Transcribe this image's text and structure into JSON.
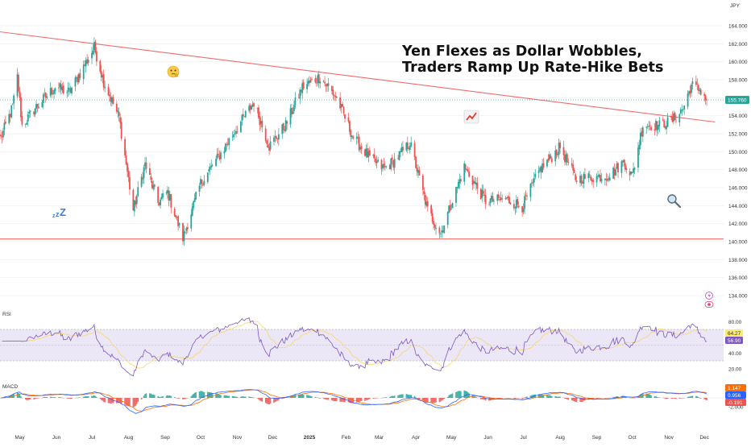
{
  "headline": {
    "line1": "Yen Flexes as Dollar Wobbles,",
    "line2": "Traders Ramp Up Rate-Hike Bets"
  },
  "currency_label": "JPY",
  "colors": {
    "up": "#26a69a",
    "down": "#ef5350",
    "trendline": "#f06c6c",
    "rsi_line": "#7e57c2",
    "rsi_signal": "#f5d76e",
    "macd_line": "#2962ff",
    "macd_signal": "#ff6d00",
    "price_badge": "#26a69a",
    "rsi_badge_1": "#fbe97a",
    "rsi_badge_2": "#7e57c2",
    "macd_badge_signal": "#ff6d00",
    "macd_badge_line": "#2962ff",
    "macd_badge_hist": "#ef5350"
  },
  "icons": [
    "thinking-face-icon",
    "chart-increasing-icon",
    "sleeping-zzz-icon",
    "magnifying-glass-icon",
    "lightning-icon",
    "eye-icon"
  ],
  "chart_data": [
    {
      "type": "candlestick",
      "name": "price",
      "ylim": [
        134,
        166
      ],
      "y_ticks": [
        "164.000",
        "162.000",
        "160.000",
        "158.000",
        "156.000",
        "154.000",
        "152.000",
        "150.000",
        "148.000",
        "146.000",
        "144.000",
        "142.000",
        "140.000",
        "138.000",
        "136.000",
        "134.000"
      ],
      "x_ticks": [
        "May",
        "Jun",
        "Jul",
        "Aug",
        "Sep",
        "Oct",
        "Nov",
        "Dec",
        "2025",
        "Feb",
        "Mar",
        "Apr",
        "May",
        "Jun",
        "Jul",
        "Aug",
        "Sep",
        "Oct",
        "Nov",
        "Dec"
      ],
      "last_price": "155.760",
      "close_path": [
        {
          "x": "2024-04-15",
          "y": 151.5
        },
        {
          "x": "2024-04-25",
          "y": 155.0
        },
        {
          "x": "2024-04-29",
          "y": 158.3
        },
        {
          "x": "2024-05-03",
          "y": 152.9
        },
        {
          "x": "2024-05-15",
          "y": 155.0
        },
        {
          "x": "2024-05-31",
          "y": 157.2
        },
        {
          "x": "2024-06-12",
          "y": 156.6
        },
        {
          "x": "2024-06-26",
          "y": 159.9
        },
        {
          "x": "2024-07-03",
          "y": 161.6
        },
        {
          "x": "2024-07-11",
          "y": 157.8
        },
        {
          "x": "2024-07-24",
          "y": 153.8
        },
        {
          "x": "2024-08-05",
          "y": 143.5
        },
        {
          "x": "2024-08-15",
          "y": 148.6
        },
        {
          "x": "2024-08-26",
          "y": 144.3
        },
        {
          "x": "2024-09-03",
          "y": 145.5
        },
        {
          "x": "2024-09-16",
          "y": 140.4
        },
        {
          "x": "2024-10-01",
          "y": 146.5
        },
        {
          "x": "2024-10-15",
          "y": 149.2
        },
        {
          "x": "2024-10-31",
          "y": 152.5
        },
        {
          "x": "2024-11-15",
          "y": 155.5
        },
        {
          "x": "2024-11-28",
          "y": 150.6
        },
        {
          "x": "2024-12-12",
          "y": 153.0
        },
        {
          "x": "2024-12-26",
          "y": 157.2
        },
        {
          "x": "2025-01-10",
          "y": 158.3
        },
        {
          "x": "2025-01-24",
          "y": 156.0
        },
        {
          "x": "2025-02-07",
          "y": 151.6
        },
        {
          "x": "2025-02-21",
          "y": 149.3
        },
        {
          "x": "2025-03-05",
          "y": 148.1
        },
        {
          "x": "2025-03-14",
          "y": 149.0
        },
        {
          "x": "2025-03-27",
          "y": 151.0
        },
        {
          "x": "2025-04-11",
          "y": 143.5
        },
        {
          "x": "2025-04-22",
          "y": 140.9
        },
        {
          "x": "2025-05-12",
          "y": 148.3
        },
        {
          "x": "2025-05-30",
          "y": 144.5
        },
        {
          "x": "2025-06-16",
          "y": 144.7
        },
        {
          "x": "2025-06-30",
          "y": 143.9
        },
        {
          "x": "2025-07-15",
          "y": 148.0
        },
        {
          "x": "2025-08-01",
          "y": 150.5
        },
        {
          "x": "2025-08-14",
          "y": 147.0
        },
        {
          "x": "2025-09-01",
          "y": 147.2
        },
        {
          "x": "2025-09-12",
          "y": 147.4
        },
        {
          "x": "2025-09-24",
          "y": 148.9
        },
        {
          "x": "2025-10-01",
          "y": 147.3
        },
        {
          "x": "2025-10-10",
          "y": 153.0
        },
        {
          "x": "2025-10-24",
          "y": 152.9
        },
        {
          "x": "2025-11-04",
          "y": 153.5
        },
        {
          "x": "2025-11-13",
          "y": 154.8
        },
        {
          "x": "2025-11-20",
          "y": 157.4
        },
        {
          "x": "2025-11-28",
          "y": 156.8
        },
        {
          "x": "2025-12-03",
          "y": 155.76
        }
      ],
      "trendline_resistance": [
        {
          "x": "2024-04-10",
          "y": 163.4
        },
        {
          "x": "2025-12-10",
          "y": 153.3
        }
      ],
      "support_level": 140.3
    },
    {
      "type": "line",
      "name": "RSI",
      "ylim": [
        0,
        100
      ],
      "y_ticks": [
        "80.00",
        "60.00",
        "40.00",
        "20.00"
      ],
      "band": [
        30,
        70
      ],
      "last_values": [
        "64.27",
        "56.90"
      ],
      "series_hint": "RSI(14) of price close with yellow signal line"
    },
    {
      "type": "bar+line",
      "name": "MACD",
      "y_ticks": [
        "-2.000"
      ],
      "last_values": [
        "1.147",
        "0.956",
        "-0.191"
      ],
      "series_hint": "MACD line, signal line and histogram"
    }
  ]
}
